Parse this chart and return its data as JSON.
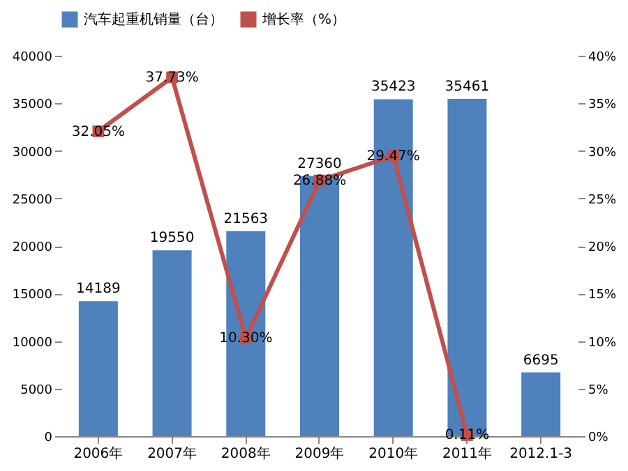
{
  "chart_data": {
    "type": "bar",
    "categories": [
      "2006年",
      "2007年",
      "2008年",
      "2009年",
      "2010年",
      "2011年",
      "2012.1-3"
    ],
    "series": [
      {
        "name": "汽车起重机销量（台）",
        "color": "#4f81bd",
        "values": [
          14189,
          19550,
          21563,
          27360,
          35423,
          35461,
          6695
        ],
        "value_labels": [
          "14189",
          "19550",
          "21563",
          "27360",
          "35423",
          "35461",
          "6695"
        ]
      },
      {
        "name": "增长率（%）",
        "type": "line",
        "axis": "y2",
        "color": "#c0504d",
        "marker": "square",
        "values": [
          32.05,
          37.73,
          10.3,
          26.88,
          29.47,
          0.11,
          null
        ],
        "value_labels": [
          "32.05%",
          "37.73%",
          "10.30%",
          "26.88%",
          "29.47%",
          "0.11%",
          null
        ]
      }
    ],
    "ylim": [
      0,
      40000
    ],
    "yticks": [
      0,
      5000,
      10000,
      15000,
      20000,
      25000,
      30000,
      35000,
      40000
    ],
    "y2lim": [
      0,
      40
    ],
    "y2ticks": [
      {
        "value": 0,
        "label": "0%"
      },
      {
        "value": 5,
        "label": "5%"
      },
      {
        "value": 10,
        "label": "10%"
      },
      {
        "value": 15,
        "label": "15%"
      },
      {
        "value": 20,
        "label": "20%"
      },
      {
        "value": 25,
        "label": "25%"
      },
      {
        "value": 30,
        "label": "30%"
      },
      {
        "value": 35,
        "label": "35%"
      },
      {
        "value": 40,
        "label": "40%"
      }
    ],
    "grid": false,
    "legend": "top"
  }
}
